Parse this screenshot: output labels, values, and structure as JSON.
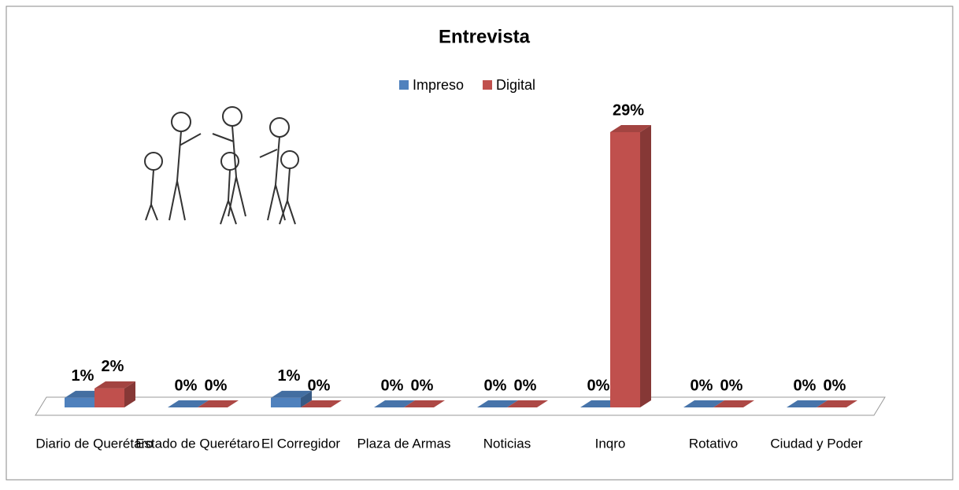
{
  "chart_data": {
    "type": "bar3d",
    "title": "Entrevista",
    "categories": [
      "Diario de Querétaro",
      "Estado de Querétaro",
      "El Corregidor",
      "Plaza de Armas",
      "Noticias",
      "Inqro",
      "Rotativo",
      "Ciudad y Poder"
    ],
    "series": [
      {
        "name": "Impreso",
        "color": "#4f81bd",
        "values": [
          1,
          0,
          1,
          0,
          0,
          0,
          0,
          0
        ],
        "value_labels": [
          "1%",
          "0%",
          "1%",
          "0%",
          "0%",
          "0%",
          "0%",
          "0%"
        ]
      },
      {
        "name": "Digital",
        "color": "#c0504d",
        "values": [
          2,
          0,
          0,
          0,
          0,
          29,
          0,
          0
        ],
        "value_labels": [
          "2%",
          "0%",
          "0%",
          "0%",
          "0%",
          "29%",
          "0%",
          "0%"
        ]
      }
    ],
    "legend": "top"
  }
}
